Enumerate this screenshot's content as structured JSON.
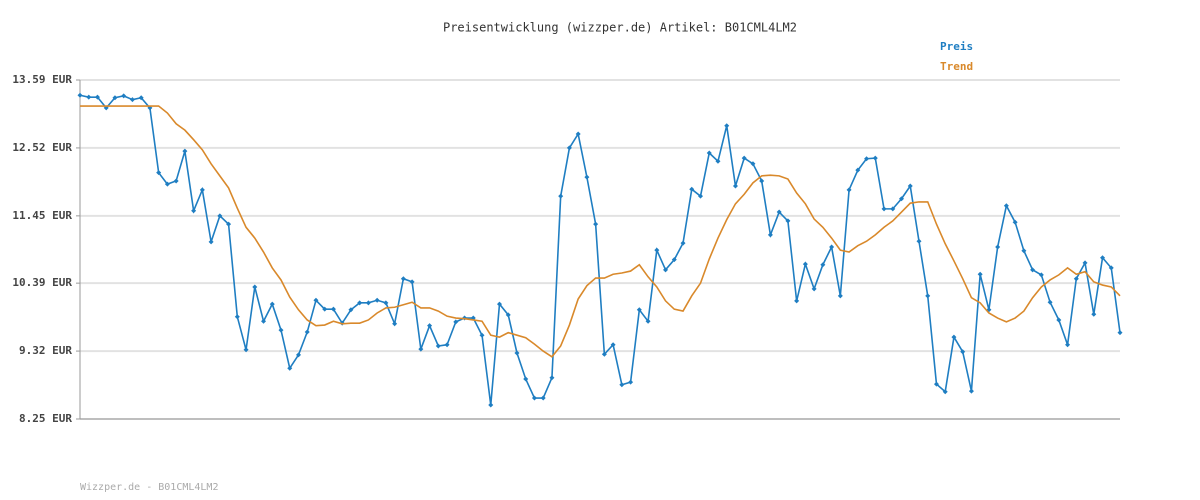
{
  "chart_data": {
    "type": "line",
    "title": "Preisentwicklung (wizzper.de) Artikel: B01CML4LM2",
    "footer": "Wizzper.de - B01CML4LM2",
    "legend": "top-right",
    "grid": true,
    "ylim": [
      8.25,
      13.59
    ],
    "yticks": [
      {
        "value": 8.25,
        "label": "8.25 EUR"
      },
      {
        "value": 9.32,
        "label": "9.32 EUR"
      },
      {
        "value": 10.39,
        "label": "10.39 EUR"
      },
      {
        "value": 11.45,
        "label": "11.45 EUR"
      },
      {
        "value": 12.52,
        "label": "12.52 EUR"
      },
      {
        "value": 13.59,
        "label": "13.59 EUR"
      }
    ],
    "series": [
      {
        "name": "Preis",
        "color": "#1f7ec2",
        "markers": true,
        "values": [
          13.35,
          13.32,
          13.32,
          13.15,
          13.31,
          13.34,
          13.28,
          13.31,
          13.15,
          12.13,
          11.95,
          12.0,
          12.47,
          11.53,
          11.86,
          11.04,
          11.45,
          11.32,
          9.86,
          9.34,
          10.33,
          9.79,
          10.06,
          9.65,
          9.05,
          9.26,
          9.62,
          10.12,
          9.98,
          9.98,
          9.76,
          9.97,
          10.08,
          10.08,
          10.12,
          10.08,
          9.75,
          10.46,
          10.41,
          9.35,
          9.72,
          9.4,
          9.42,
          9.78,
          9.84,
          9.84,
          9.57,
          8.47,
          10.06,
          9.89,
          9.29,
          8.88,
          8.58,
          8.58,
          8.9,
          11.76,
          12.52,
          12.74,
          12.06,
          11.32,
          9.27,
          9.42,
          8.79,
          8.83,
          9.97,
          9.79,
          10.91,
          10.6,
          10.76,
          11.02,
          11.87,
          11.76,
          12.44,
          12.31,
          12.87,
          11.92,
          12.36,
          12.27,
          12.0,
          11.15,
          11.51,
          11.37,
          10.11,
          10.69,
          10.3,
          10.68,
          10.96,
          10.19,
          11.86,
          12.17,
          12.35,
          12.36,
          11.56,
          11.56,
          11.72,
          11.92,
          11.05,
          10.19,
          8.8,
          8.68,
          9.54,
          9.31,
          8.69,
          10.53,
          9.97,
          10.96,
          11.61,
          11.35,
          10.9,
          10.6,
          10.52,
          10.09,
          9.81,
          9.42,
          10.46,
          10.71,
          9.9,
          10.79,
          10.63,
          9.61
        ]
      },
      {
        "name": "Trend",
        "color": "#d9892b",
        "markers": false,
        "values": [
          13.18,
          13.18,
          13.18,
          13.18,
          13.18,
          13.18,
          13.18,
          13.18,
          13.18,
          13.18,
          13.07,
          12.9,
          12.8,
          12.65,
          12.49,
          12.27,
          12.08,
          11.89,
          11.57,
          11.27,
          11.1,
          10.88,
          10.63,
          10.44,
          10.17,
          9.97,
          9.81,
          9.72,
          9.73,
          9.79,
          9.75,
          9.76,
          9.76,
          9.81,
          9.92,
          10.0,
          10.01,
          10.05,
          10.09,
          10.0,
          10.0,
          9.95,
          9.87,
          9.84,
          9.83,
          9.81,
          9.79,
          9.57,
          9.54,
          9.61,
          9.57,
          9.53,
          9.43,
          9.32,
          9.23,
          9.4,
          9.73,
          10.14,
          10.35,
          10.47,
          10.47,
          10.53,
          10.55,
          10.58,
          10.68,
          10.49,
          10.33,
          10.11,
          9.98,
          9.95,
          10.19,
          10.39,
          10.77,
          11.1,
          11.39,
          11.64,
          11.79,
          11.97,
          12.08,
          12.09,
          12.08,
          12.03,
          11.81,
          11.64,
          11.4,
          11.27,
          11.1,
          10.91,
          10.88,
          10.98,
          11.05,
          11.15,
          11.27,
          11.37,
          11.51,
          11.65,
          11.67,
          11.67,
          11.32,
          11.01,
          10.74,
          10.46,
          10.16,
          10.08,
          9.92,
          9.84,
          9.78,
          9.84,
          9.95,
          10.16,
          10.33,
          10.44,
          10.52,
          10.63,
          10.53,
          10.57,
          10.41,
          10.36,
          10.33,
          10.19
        ]
      }
    ]
  }
}
